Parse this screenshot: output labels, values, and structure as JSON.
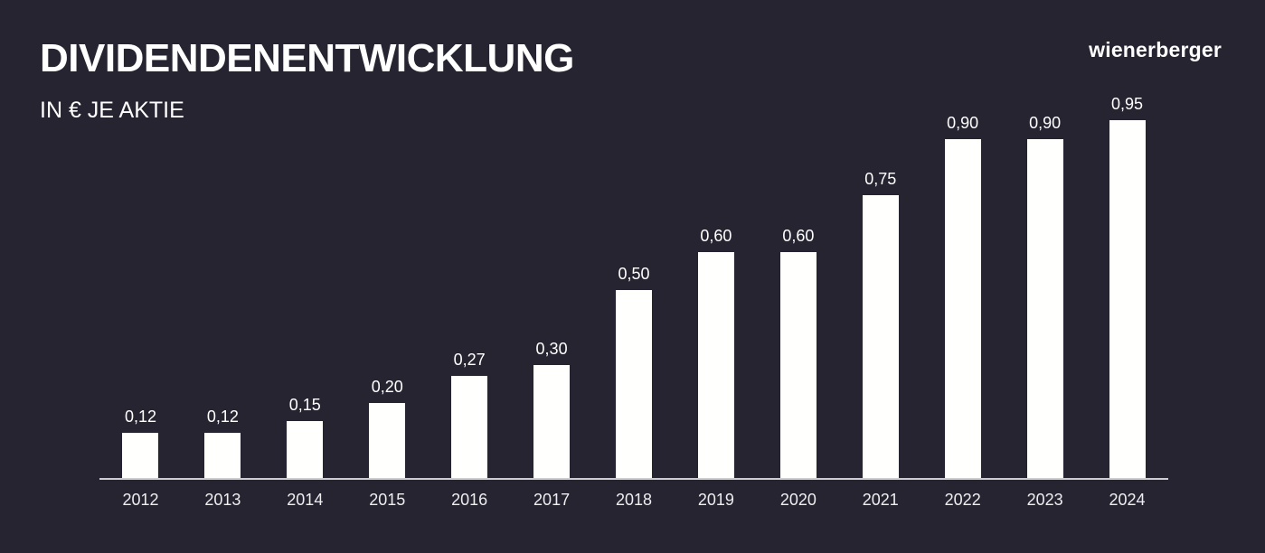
{
  "header": {
    "title": "DIVIDENDENENTWICKLUNG",
    "subtitle": "IN € JE AKTIE",
    "logo": "wienerberger"
  },
  "colors": {
    "background": "#262430",
    "bar": "#fffffd",
    "axis_line": "#cdcdd2",
    "value_label": "#ffffff",
    "year_label": "#eeedf0"
  },
  "chart_data": {
    "type": "bar",
    "title": "DIVIDENDENENTWICKLUNG",
    "subtitle": "IN € JE AKTIE",
    "xlabel": "",
    "ylabel": "",
    "unit": "€ je Aktie",
    "categories": [
      "2012",
      "2013",
      "2014",
      "2015",
      "2016",
      "2017",
      "2018",
      "2019",
      "2020",
      "2021",
      "2022",
      "2023",
      "2024"
    ],
    "values": [
      0.12,
      0.12,
      0.15,
      0.2,
      0.27,
      0.3,
      0.5,
      0.6,
      0.6,
      0.75,
      0.9,
      0.9,
      0.95
    ],
    "value_labels": [
      "0,12",
      "0,12",
      "0,15",
      "0,20",
      "0,27",
      "0,30",
      "0,50",
      "0,60",
      "0,60",
      "0,75",
      "0,90",
      "0,90",
      "0,95"
    ],
    "ylim": [
      0,
      0.95
    ],
    "grid": false,
    "legend": "none",
    "bar_color": "#fffffd",
    "background_color": "#262430"
  }
}
